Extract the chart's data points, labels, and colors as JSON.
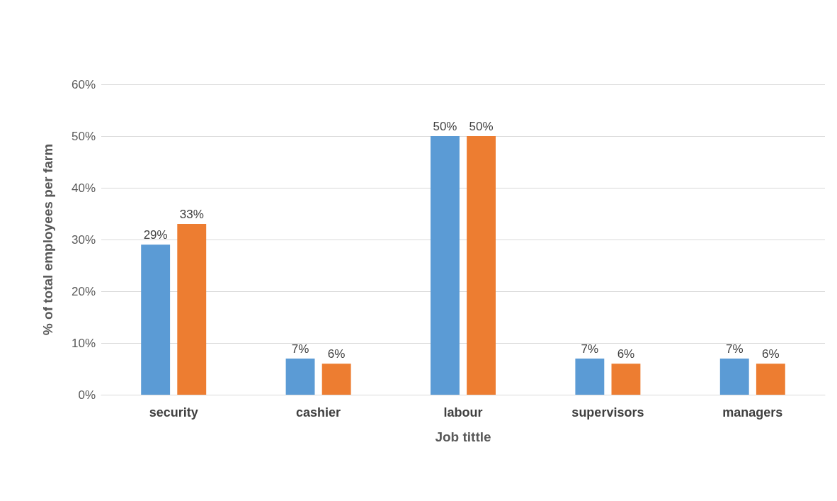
{
  "chart_data": {
    "type": "bar",
    "xlabel": "Job tittle",
    "ylabel": "% of total employees per farm",
    "categories": [
      "security",
      "cashier",
      "labour",
      "supervisors",
      "managers"
    ],
    "series": [
      {
        "color": "#5b9bd5",
        "values": [
          29,
          7,
          50,
          7,
          7
        ],
        "value_labels": [
          "29%",
          "7%",
          "50%",
          "7%",
          "7%"
        ]
      },
      {
        "color": "#ed7d31",
        "values": [
          33,
          6,
          50,
          6,
          6
        ],
        "value_labels": [
          "33%",
          "6%",
          "50%",
          "6%",
          "6%"
        ]
      }
    ],
    "ylim": [
      0,
      60
    ],
    "yticks": [
      {
        "value": 0,
        "label": "0%"
      },
      {
        "value": 10,
        "label": "10%"
      },
      {
        "value": 20,
        "label": "20%"
      },
      {
        "value": 30,
        "label": "30%"
      },
      {
        "value": 40,
        "label": "40%"
      },
      {
        "value": 50,
        "label": "50%"
      },
      {
        "value": 60,
        "label": "60%"
      }
    ],
    "grid": "y"
  }
}
